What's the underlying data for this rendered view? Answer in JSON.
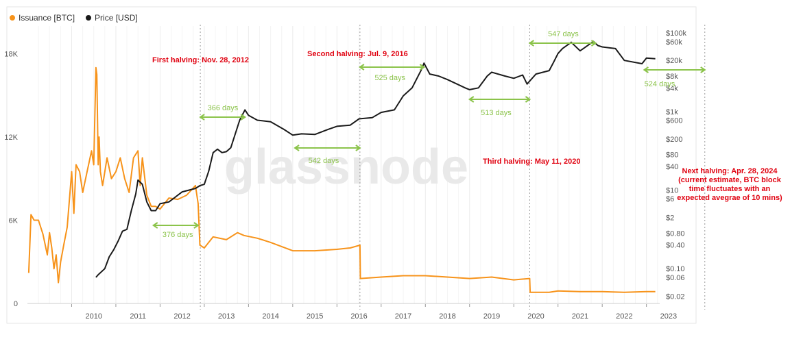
{
  "legend": {
    "issuance_label": "Issuance [BTC]",
    "price_label": "Price [USD]"
  },
  "watermark": "glassnode",
  "colors": {
    "issuance": "#f7931a",
    "price": "#1a1a1a",
    "annotation_red": "#e0000f",
    "span_green": "#8bc34a",
    "grid": "#ececec",
    "axis_text": "#555555"
  },
  "chart_data": {
    "type": "line",
    "title": "",
    "x_ticks": [
      "2010",
      "2011",
      "2012",
      "2013",
      "2014",
      "2015",
      "2016",
      "2017",
      "2018",
      "2019",
      "2020",
      "2021",
      "2022",
      "2023"
    ],
    "x_range": [
      2009.0,
      2023.3
    ],
    "y_left": {
      "label": "",
      "ticks": [
        "0",
        "6K",
        "12K",
        "18K"
      ],
      "tick_values": [
        0,
        6000,
        12000,
        18000
      ],
      "range": [
        0,
        20000
      ]
    },
    "y_right": {
      "label": "",
      "scale": "log",
      "ticks": [
        "$100k",
        "$60k",
        "$20k",
        "$8k",
        "$4k",
        "$1k",
        "$600",
        "$200",
        "$80",
        "$40",
        "$10",
        "$6",
        "$2",
        "$0.80",
        "$0.40",
        "$0.10",
        "$0.06",
        "$0.02"
      ],
      "tick_values": [
        100000,
        60000,
        20000,
        8000,
        4000,
        1000,
        600,
        200,
        80,
        40,
        10,
        6,
        2,
        0.8,
        0.4,
        0.1,
        0.06,
        0.02
      ],
      "range": [
        0.013,
        150000
      ]
    },
    "series": [
      {
        "name": "Issuance [BTC]",
        "axis": "left",
        "x": [
          2009.03,
          2009.08,
          2009.15,
          2009.25,
          2009.35,
          2009.45,
          2009.5,
          2009.55,
          2009.6,
          2009.65,
          2009.7,
          2009.75,
          2009.82,
          2009.9,
          2010.0,
          2010.05,
          2010.1,
          2010.18,
          2010.25,
          2010.35,
          2010.45,
          2010.5,
          2010.55,
          2010.57,
          2010.6,
          2010.62,
          2010.65,
          2010.7,
          2010.8,
          2010.9,
          2011.0,
          2011.1,
          2011.2,
          2011.3,
          2011.4,
          2011.5,
          2011.55,
          2011.6,
          2011.7,
          2011.8,
          2011.9,
          2012.0,
          2012.2,
          2012.4,
          2012.6,
          2012.8,
          2012.86,
          2012.9,
          2013.0,
          2013.2,
          2013.5,
          2013.75,
          2013.9,
          2014.2,
          2014.5,
          2015.0,
          2015.5,
          2016.0,
          2016.3,
          2016.52,
          2016.53,
          2017.0,
          2017.5,
          2018.0,
          2018.5,
          2019.0,
          2019.5,
          2020.0,
          2020.36,
          2020.37,
          2020.8,
          2021.0,
          2021.5,
          2022.0,
          2022.5,
          2023.0,
          2023.2
        ],
        "values": [
          2200,
          6400,
          6000,
          6000,
          5000,
          3500,
          5100,
          4000,
          2500,
          3500,
          1500,
          3000,
          4200,
          5500,
          9500,
          6500,
          10000,
          9500,
          8000,
          9500,
          11000,
          10000,
          17000,
          16500,
          10000,
          12000,
          9500,
          8500,
          10500,
          9000,
          9500,
          10500,
          9000,
          8000,
          10500,
          11000,
          8500,
          10500,
          7800,
          7000,
          7000,
          6800,
          7600,
          7500,
          7800,
          8500,
          7200,
          4200,
          4000,
          4800,
          4600,
          5100,
          4900,
          4700,
          4400,
          3800,
          3800,
          3900,
          4000,
          4200,
          1800,
          1900,
          2000,
          2000,
          1900,
          1800,
          1900,
          1700,
          1800,
          800,
          800,
          900,
          850,
          850,
          800,
          850,
          850
        ]
      },
      {
        "name": "Price [USD]",
        "axis": "right",
        "x": [
          2010.55,
          2010.6,
          2010.75,
          2010.85,
          2010.95,
          2011.05,
          2011.15,
          2011.25,
          2011.35,
          2011.45,
          2011.5,
          2011.6,
          2011.7,
          2011.8,
          2011.9,
          2012.0,
          2012.2,
          2012.5,
          2012.8,
          2012.9,
          2013.0,
          2013.1,
          2013.2,
          2013.3,
          2013.4,
          2013.5,
          2013.6,
          2013.8,
          2013.92,
          2014.0,
          2014.2,
          2014.5,
          2014.8,
          2015.0,
          2015.2,
          2015.5,
          2015.8,
          2016.0,
          2016.3,
          2016.5,
          2016.8,
          2017.0,
          2017.3,
          2017.5,
          2017.7,
          2017.9,
          2017.97,
          2018.1,
          2018.3,
          2018.5,
          2018.9,
          2019.0,
          2019.2,
          2019.4,
          2019.5,
          2019.8,
          2020.0,
          2020.2,
          2020.3,
          2020.5,
          2020.8,
          2020.9,
          2021.0,
          2021.1,
          2021.3,
          2021.5,
          2021.6,
          2021.8,
          2021.9,
          2022.0,
          2022.3,
          2022.5,
          2022.9,
          2023.0,
          2023.2
        ],
        "values": [
          0.06,
          0.07,
          0.1,
          0.2,
          0.3,
          0.5,
          0.9,
          1,
          3,
          8,
          18,
          14,
          5,
          3,
          3,
          4.5,
          5,
          9,
          11,
          13,
          14,
          30,
          90,
          110,
          90,
          95,
          120,
          600,
          1100,
          800,
          600,
          550,
          350,
          250,
          270,
          260,
          350,
          420,
          450,
          650,
          700,
          950,
          1100,
          2500,
          4000,
          11000,
          17000,
          9000,
          8000,
          6500,
          4000,
          3600,
          4000,
          8000,
          10000,
          8000,
          7000,
          8500,
          5000,
          9000,
          11000,
          18000,
          30000,
          40000,
          58000,
          35000,
          42000,
          61000,
          48000,
          44000,
          40000,
          20000,
          16500,
          23000,
          22000
        ]
      }
    ],
    "halvings": [
      {
        "label": "First halving: Nov. 28, 2012",
        "x": 2012.91
      },
      {
        "label": "Second halving: Jul. 9, 2016",
        "x": 2016.52
      },
      {
        "label": "Third halving: May 11, 2020",
        "x": 2020.36
      },
      {
        "label": "Next halving: Apr. 28, 2024 (current estimate, BTC block time fluctuates with an expected avegrae of 10 mins)",
        "x": 2024.32
      }
    ],
    "span_labels": [
      "366 days",
      "376 days",
      "542 days",
      "525 days",
      "513 days",
      "547 days",
      "524 days"
    ],
    "annotations": {
      "first_halving": "First halving: Nov. 28, 2012",
      "second_halving": "Second halving: Jul. 9, 2016",
      "third_halving": "Third halving: May 11, 2020",
      "next_halving_1": "Next halving: Apr. 28, 2024",
      "next_halving_2": "(current estimate, BTC block",
      "next_halving_3": "time fluctuates with an",
      "next_halving_4": "expected avegrae of 10 mins)"
    },
    "grid": true,
    "legend_position": "top-left"
  }
}
